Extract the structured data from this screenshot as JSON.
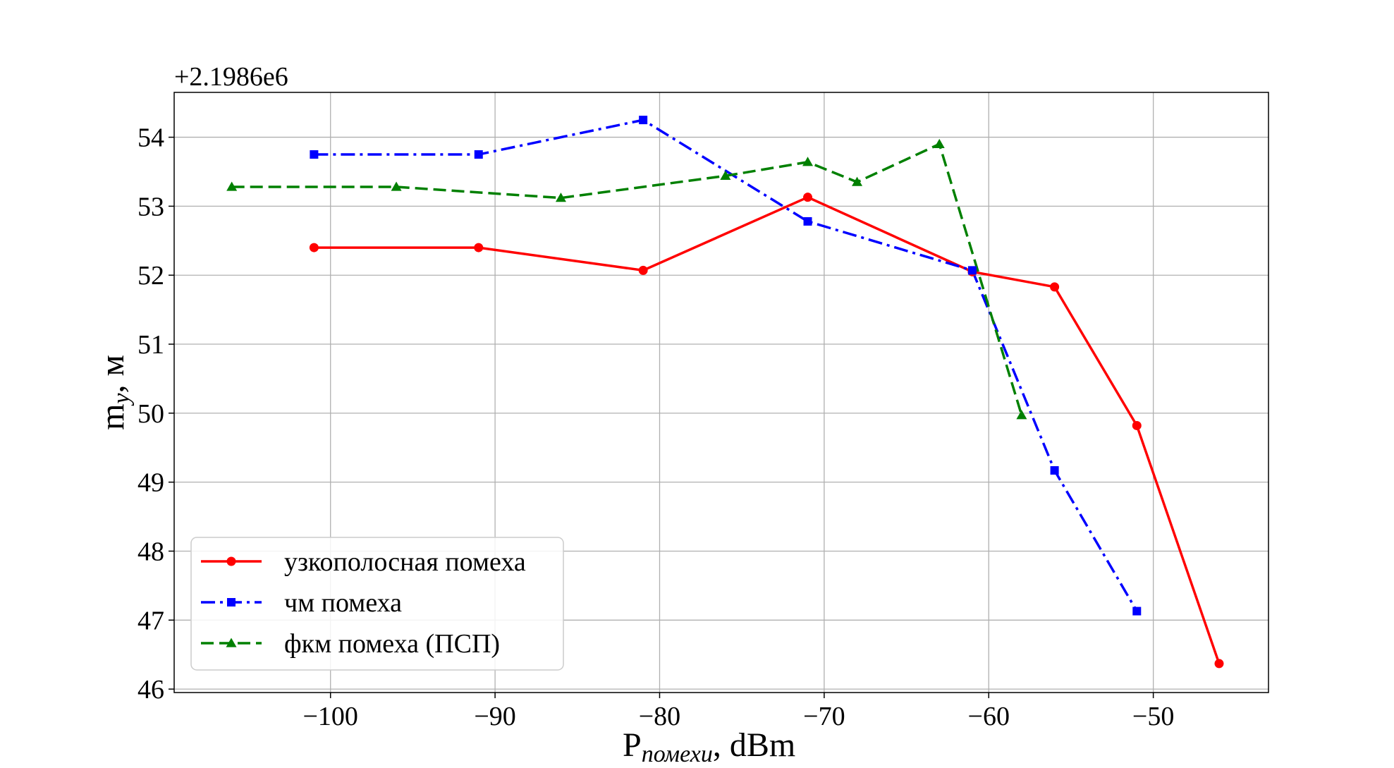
{
  "chart_data": {
    "type": "line",
    "offset_text": "+2.1986e6",
    "xlabel": {
      "main": "P",
      "sub": "помехи",
      "unit": ", dBm"
    },
    "ylabel": {
      "main": "m",
      "sub": "y",
      "unit": ", м"
    },
    "xlim": [
      -109.5,
      -43
    ],
    "ylim": [
      45.95,
      54.65
    ],
    "xticks": [
      -100,
      -90,
      -80,
      -70,
      -60,
      -50
    ],
    "xtick_labels": [
      "−100",
      "−90",
      "−80",
      "−70",
      "−60",
      "−50"
    ],
    "yticks": [
      46,
      47,
      48,
      49,
      50,
      51,
      52,
      53,
      54
    ],
    "ytick_labels": [
      "46",
      "47",
      "48",
      "49",
      "50",
      "51",
      "52",
      "53",
      "54"
    ],
    "grid": true,
    "legend_position": "lower-left",
    "series": [
      {
        "name": "узкополосная помеха",
        "color": "#ff0000",
        "dash": "solid",
        "marker": "circle",
        "x": [
          -101,
          -91,
          -81,
          -71,
          -61,
          -56,
          -51,
          -46
        ],
        "y": [
          52.4,
          52.4,
          52.07,
          53.13,
          52.05,
          51.83,
          49.82,
          46.37
        ]
      },
      {
        "name": "чм помеха",
        "color": "#0000ff",
        "dash": "dashdot",
        "marker": "square",
        "x": [
          -101,
          -91,
          -81,
          -71,
          -61,
          -56,
          -51
        ],
        "y": [
          53.75,
          53.75,
          54.25,
          52.78,
          52.07,
          49.17,
          47.13
        ]
      },
      {
        "name": "фкм помеха (ПСП)",
        "color": "#008000",
        "dash": "dashed",
        "marker": "triangle",
        "x": [
          -106,
          -96,
          -86,
          -76,
          -71,
          -68,
          -63,
          -58
        ],
        "y": [
          53.28,
          53.28,
          53.12,
          53.44,
          53.64,
          53.35,
          53.9,
          49.97
        ]
      }
    ]
  }
}
